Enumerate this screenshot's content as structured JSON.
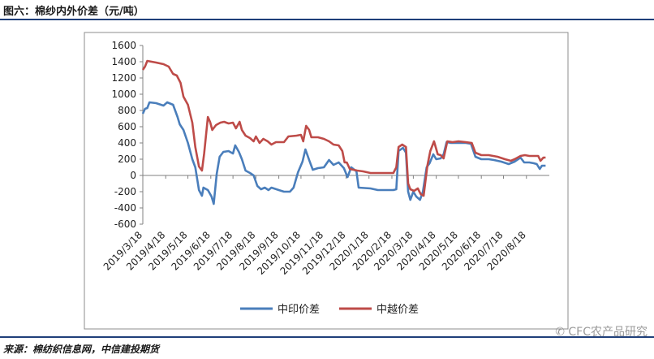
{
  "header": {
    "title": "图六：棉纱内外价差（元/吨）"
  },
  "footer": {
    "source": "来源：棉纺织信息网，中信建投期货",
    "watermark": "CFC农产品研究"
  },
  "chart_data": {
    "type": "line",
    "title": "",
    "xlabel": "",
    "ylabel": "",
    "ylim": [
      -600,
      1600
    ],
    "yticks": [
      -600,
      -400,
      -200,
      0,
      200,
      400,
      600,
      800,
      1000,
      1200,
      1400,
      1600
    ],
    "xlim": [
      "2019-03-18",
      "2020-09-18"
    ],
    "xticks": [
      "2019/3/18",
      "2019/4/18",
      "2019/5/18",
      "2019/6/18",
      "2019/7/18",
      "2019/8/18",
      "2019/9/18",
      "2019/10/18",
      "2019/11/18",
      "2019/12/18",
      "2020/1/18",
      "2020/2/18",
      "2020/3/18",
      "2020/4/18",
      "2020/5/18",
      "2020/6/18",
      "2020/7/18",
      "2020/8/18"
    ],
    "grid": false,
    "legend": "bottom",
    "colors": {
      "中印价差": "#4a7ebb",
      "中越价差": "#be4b48"
    },
    "series": [
      {
        "name": "中印价差",
        "points": [
          [
            "2019-03-18",
            760
          ],
          [
            "2019-03-21",
            820
          ],
          [
            "2019-03-24",
            830
          ],
          [
            "2019-03-27",
            900
          ],
          [
            "2019-04-05",
            890
          ],
          [
            "2019-04-15",
            860
          ],
          [
            "2019-04-20",
            900
          ],
          [
            "2019-04-28",
            870
          ],
          [
            "2019-05-04",
            720
          ],
          [
            "2019-05-07",
            630
          ],
          [
            "2019-05-12",
            560
          ],
          [
            "2019-05-18",
            400
          ],
          [
            "2019-05-24",
            200
          ],
          [
            "2019-05-28",
            100
          ],
          [
            "2019-06-02",
            -180
          ],
          [
            "2019-06-06",
            -250
          ],
          [
            "2019-06-08",
            -150
          ],
          [
            "2019-06-14",
            -180
          ],
          [
            "2019-06-19",
            -260
          ],
          [
            "2019-06-22",
            -350
          ],
          [
            "2019-06-26",
            20
          ],
          [
            "2019-06-30",
            230
          ],
          [
            "2019-07-05",
            290
          ],
          [
            "2019-07-12",
            300
          ],
          [
            "2019-07-18",
            270
          ],
          [
            "2019-07-21",
            370
          ],
          [
            "2019-07-26",
            290
          ],
          [
            "2019-07-30",
            200
          ],
          [
            "2019-08-04",
            60
          ],
          [
            "2019-08-10",
            30
          ],
          [
            "2019-08-15",
            0
          ],
          [
            "2019-08-20",
            -130
          ],
          [
            "2019-08-25",
            -170
          ],
          [
            "2019-08-30",
            -150
          ],
          [
            "2019-09-04",
            -180
          ],
          [
            "2019-09-08",
            -150
          ],
          [
            "2019-09-18",
            -180
          ],
          [
            "2019-09-25",
            -200
          ],
          [
            "2019-10-03",
            -200
          ],
          [
            "2019-10-08",
            -150
          ],
          [
            "2019-10-14",
            40
          ],
          [
            "2019-10-20",
            170
          ],
          [
            "2019-10-24",
            320
          ],
          [
            "2019-10-29",
            190
          ],
          [
            "2019-11-03",
            70
          ],
          [
            "2019-11-10",
            90
          ],
          [
            "2019-11-18",
            100
          ],
          [
            "2019-11-25",
            190
          ],
          [
            "2019-12-01",
            130
          ],
          [
            "2019-12-08",
            160
          ],
          [
            "2019-12-15",
            90
          ],
          [
            "2019-12-20",
            -20
          ],
          [
            "2019-12-25",
            100
          ],
          [
            "2020-01-01",
            50
          ],
          [
            "2020-01-04",
            -150
          ],
          [
            "2020-01-20",
            -160
          ],
          [
            "2020-01-30",
            -180
          ],
          [
            "2020-02-20",
            -180
          ],
          [
            "2020-02-24",
            -170
          ],
          [
            "2020-02-27",
            300
          ],
          [
            "2020-03-04",
            340
          ],
          [
            "2020-03-08",
            280
          ],
          [
            "2020-03-11",
            -200
          ],
          [
            "2020-03-14",
            -300
          ],
          [
            "2020-03-18",
            -200
          ],
          [
            "2020-03-22",
            -260
          ],
          [
            "2020-03-27",
            -300
          ],
          [
            "2020-03-31",
            -200
          ],
          [
            "2020-04-05",
            100
          ],
          [
            "2020-04-09",
            150
          ],
          [
            "2020-04-14",
            260
          ],
          [
            "2020-04-18",
            200
          ],
          [
            "2020-04-24",
            210
          ],
          [
            "2020-04-28",
            260
          ],
          [
            "2020-05-02",
            410
          ],
          [
            "2020-05-08",
            400
          ],
          [
            "2020-05-18",
            400
          ],
          [
            "2020-05-28",
            400
          ],
          [
            "2020-06-04",
            390
          ],
          [
            "2020-06-10",
            230
          ],
          [
            "2020-06-18",
            200
          ],
          [
            "2020-06-28",
            200
          ],
          [
            "2020-07-05",
            190
          ],
          [
            "2020-07-15",
            170
          ],
          [
            "2020-07-25",
            140
          ],
          [
            "2020-08-02",
            170
          ],
          [
            "2020-08-10",
            220
          ],
          [
            "2020-08-15",
            160
          ],
          [
            "2020-08-22",
            160
          ],
          [
            "2020-08-28",
            150
          ],
          [
            "2020-09-01",
            140
          ],
          [
            "2020-09-05",
            80
          ],
          [
            "2020-09-08",
            120
          ],
          [
            "2020-09-13",
            120
          ]
        ]
      },
      {
        "name": "中越价差",
        "points": [
          [
            "2019-03-18",
            1300
          ],
          [
            "2019-03-21",
            1340
          ],
          [
            "2019-03-24",
            1410
          ],
          [
            "2019-04-05",
            1390
          ],
          [
            "2019-04-15",
            1370
          ],
          [
            "2019-04-22",
            1340
          ],
          [
            "2019-04-28",
            1250
          ],
          [
            "2019-05-03",
            1230
          ],
          [
            "2019-05-08",
            1140
          ],
          [
            "2019-05-12",
            970
          ],
          [
            "2019-05-18",
            870
          ],
          [
            "2019-05-24",
            650
          ],
          [
            "2019-05-28",
            350
          ],
          [
            "2019-06-02",
            110
          ],
          [
            "2019-06-06",
            60
          ],
          [
            "2019-06-09",
            270
          ],
          [
            "2019-06-14",
            720
          ],
          [
            "2019-06-17",
            660
          ],
          [
            "2019-06-20",
            560
          ],
          [
            "2019-06-25",
            620
          ],
          [
            "2019-07-01",
            650
          ],
          [
            "2019-07-06",
            660
          ],
          [
            "2019-07-12",
            640
          ],
          [
            "2019-07-18",
            650
          ],
          [
            "2019-07-22",
            580
          ],
          [
            "2019-07-27",
            660
          ],
          [
            "2019-07-30",
            560
          ],
          [
            "2019-08-04",
            490
          ],
          [
            "2019-08-10",
            460
          ],
          [
            "2019-08-15",
            420
          ],
          [
            "2019-08-18",
            480
          ],
          [
            "2019-08-23",
            400
          ],
          [
            "2019-08-28",
            450
          ],
          [
            "2019-09-03",
            420
          ],
          [
            "2019-09-08",
            380
          ],
          [
            "2019-09-14",
            410
          ],
          [
            "2019-09-25",
            410
          ],
          [
            "2019-10-01",
            480
          ],
          [
            "2019-10-12",
            490
          ],
          [
            "2019-10-18",
            500
          ],
          [
            "2019-10-21",
            420
          ],
          [
            "2019-10-25",
            610
          ],
          [
            "2019-10-29",
            560
          ],
          [
            "2019-11-01",
            470
          ],
          [
            "2019-11-10",
            470
          ],
          [
            "2019-11-18",
            450
          ],
          [
            "2019-11-25",
            420
          ],
          [
            "2019-12-01",
            380
          ],
          [
            "2019-12-08",
            370
          ],
          [
            "2019-12-13",
            300
          ],
          [
            "2019-12-16",
            160
          ],
          [
            "2019-12-19",
            160
          ],
          [
            "2019-12-23",
            80
          ],
          [
            "2019-12-28",
            70
          ],
          [
            "2020-01-02",
            60
          ],
          [
            "2020-01-10",
            50
          ],
          [
            "2020-01-20",
            30
          ],
          [
            "2020-02-10",
            30
          ],
          [
            "2020-02-20",
            30
          ],
          [
            "2020-02-24",
            100
          ],
          [
            "2020-02-27",
            350
          ],
          [
            "2020-03-03",
            380
          ],
          [
            "2020-03-08",
            350
          ],
          [
            "2020-03-11",
            -100
          ],
          [
            "2020-03-14",
            -170
          ],
          [
            "2020-03-19",
            -190
          ],
          [
            "2020-03-24",
            -160
          ],
          [
            "2020-03-28",
            -230
          ],
          [
            "2020-04-01",
            -250
          ],
          [
            "2020-04-06",
            120
          ],
          [
            "2020-04-10",
            300
          ],
          [
            "2020-04-15",
            420
          ],
          [
            "2020-04-20",
            260
          ],
          [
            "2020-04-24",
            250
          ],
          [
            "2020-04-28",
            210
          ],
          [
            "2020-05-03",
            420
          ],
          [
            "2020-05-10",
            410
          ],
          [
            "2020-05-18",
            420
          ],
          [
            "2020-05-28",
            410
          ],
          [
            "2020-06-05",
            400
          ],
          [
            "2020-06-10",
            280
          ],
          [
            "2020-06-18",
            250
          ],
          [
            "2020-06-28",
            250
          ],
          [
            "2020-07-10",
            230
          ],
          [
            "2020-07-20",
            200
          ],
          [
            "2020-07-28",
            180
          ],
          [
            "2020-08-02",
            200
          ],
          [
            "2020-08-10",
            240
          ],
          [
            "2020-08-16",
            250
          ],
          [
            "2020-08-22",
            240
          ],
          [
            "2020-08-28",
            240
          ],
          [
            "2020-09-03",
            240
          ],
          [
            "2020-09-06",
            180
          ],
          [
            "2020-09-10",
            220
          ],
          [
            "2020-09-13",
            220
          ]
        ]
      }
    ]
  }
}
